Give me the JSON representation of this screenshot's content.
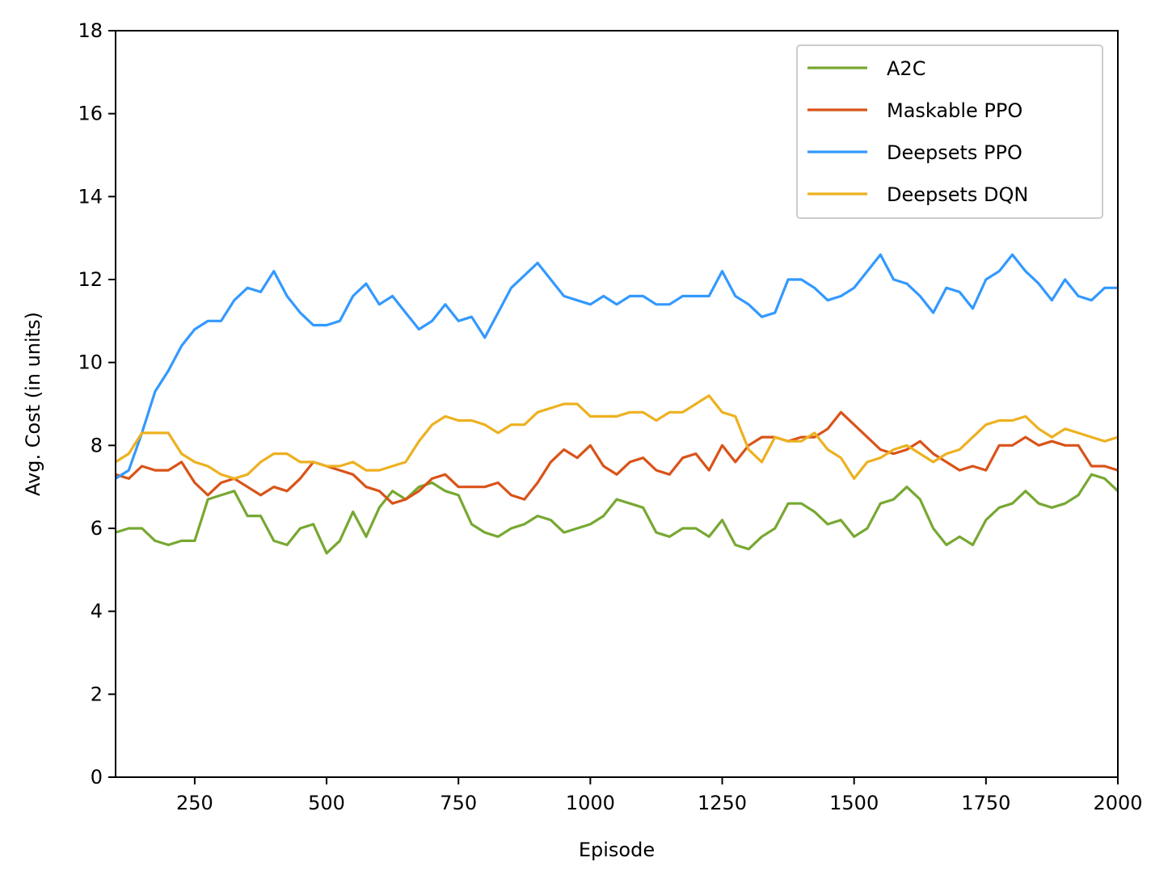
{
  "chart_data": {
    "type": "line",
    "title": "",
    "xlabel": "Episode",
    "ylabel": "Avg. Cost (in units)",
    "xlim": [
      100,
      2000
    ],
    "ylim": [
      0,
      18
    ],
    "xticks": [
      250,
      500,
      750,
      1000,
      1250,
      1500,
      1750,
      2000
    ],
    "yticks": [
      0,
      2,
      4,
      6,
      8,
      10,
      12,
      14,
      16,
      18
    ],
    "grid": false,
    "legend_position": "upper right",
    "x": [
      100,
      125,
      150,
      175,
      200,
      225,
      250,
      275,
      300,
      325,
      350,
      375,
      400,
      425,
      450,
      475,
      500,
      525,
      550,
      575,
      600,
      625,
      650,
      675,
      700,
      725,
      750,
      775,
      800,
      825,
      850,
      875,
      900,
      925,
      950,
      975,
      1000,
      1025,
      1050,
      1075,
      1100,
      1125,
      1150,
      1175,
      1200,
      1225,
      1250,
      1275,
      1300,
      1325,
      1350,
      1375,
      1400,
      1425,
      1450,
      1475,
      1500,
      1525,
      1550,
      1575,
      1600,
      1625,
      1650,
      1675,
      1700,
      1725,
      1750,
      1775,
      1800,
      1825,
      1850,
      1875,
      1900,
      1925,
      1950,
      1975,
      2000
    ],
    "series": [
      {
        "name": "A2C",
        "color": "#77a832",
        "values": [
          5.9,
          6.0,
          6.0,
          5.7,
          5.6,
          5.7,
          5.7,
          6.7,
          6.8,
          6.9,
          6.3,
          6.3,
          5.7,
          5.6,
          6.0,
          6.1,
          5.4,
          5.7,
          6.4,
          5.8,
          6.5,
          6.9,
          6.7,
          7.0,
          7.1,
          6.9,
          6.8,
          6.1,
          5.9,
          5.8,
          6.0,
          6.1,
          6.3,
          6.2,
          5.9,
          6.0,
          6.1,
          6.3,
          6.7,
          6.6,
          6.5,
          5.9,
          5.8,
          6.0,
          6.0,
          5.8,
          6.2,
          5.6,
          5.5,
          5.8,
          6.0,
          6.6,
          6.6,
          6.4,
          6.1,
          6.2,
          5.8,
          6.0,
          6.6,
          6.7,
          7.0,
          6.7,
          6.0,
          5.6,
          5.8,
          5.6,
          6.2,
          6.5,
          6.6,
          6.9,
          6.6,
          6.5,
          6.6,
          6.8,
          7.3,
          7.2,
          6.9
        ]
      },
      {
        "name": "Maskable PPO",
        "color": "#d95319",
        "values": [
          7.3,
          7.2,
          7.5,
          7.4,
          7.4,
          7.6,
          7.1,
          6.8,
          7.1,
          7.2,
          7.0,
          6.8,
          7.0,
          6.9,
          7.2,
          7.6,
          7.5,
          7.4,
          7.3,
          7.0,
          6.9,
          6.6,
          6.7,
          6.9,
          7.2,
          7.3,
          7.0,
          7.0,
          7.0,
          7.1,
          6.8,
          6.7,
          7.1,
          7.6,
          7.9,
          7.7,
          8.0,
          7.5,
          7.3,
          7.6,
          7.7,
          7.4,
          7.3,
          7.7,
          7.8,
          7.4,
          8.0,
          7.6,
          8.0,
          8.2,
          8.2,
          8.1,
          8.2,
          8.2,
          8.4,
          8.8,
          8.5,
          8.2,
          7.9,
          7.8,
          7.9,
          8.1,
          7.8,
          7.6,
          7.4,
          7.5,
          7.4,
          8.0,
          8.0,
          8.2,
          8.0,
          8.1,
          8.0,
          8.0,
          7.5,
          7.5,
          7.4
        ]
      },
      {
        "name": "Deepsets PPO",
        "color": "#3399ff",
        "values": [
          7.2,
          7.4,
          8.3,
          9.3,
          9.8,
          10.4,
          10.8,
          11.0,
          11.0,
          11.5,
          11.8,
          11.7,
          12.2,
          11.6,
          11.2,
          10.9,
          10.9,
          11.0,
          11.6,
          11.9,
          11.4,
          11.6,
          11.2,
          10.8,
          11.0,
          11.4,
          11.0,
          11.1,
          10.6,
          11.2,
          11.8,
          12.1,
          12.4,
          12.0,
          11.6,
          11.5,
          11.4,
          11.6,
          11.4,
          11.6,
          11.6,
          11.4,
          11.4,
          11.6,
          11.6,
          11.6,
          12.2,
          11.6,
          11.4,
          11.1,
          11.2,
          12.0,
          12.0,
          11.8,
          11.5,
          11.6,
          11.8,
          12.2,
          12.6,
          12.0,
          11.9,
          11.6,
          11.2,
          11.8,
          11.7,
          11.3,
          12.0,
          12.2,
          12.6,
          12.2,
          11.9,
          11.5,
          12.0,
          11.6,
          11.5,
          11.8,
          11.8
        ]
      },
      {
        "name": "Deepsets DQN",
        "color": "#edb120",
        "values": [
          7.6,
          7.8,
          8.3,
          8.3,
          8.3,
          7.8,
          7.6,
          7.5,
          7.3,
          7.2,
          7.3,
          7.6,
          7.8,
          7.8,
          7.6,
          7.6,
          7.5,
          7.5,
          7.6,
          7.4,
          7.4,
          7.5,
          7.6,
          8.1,
          8.5,
          8.7,
          8.6,
          8.6,
          8.5,
          8.3,
          8.5,
          8.5,
          8.8,
          8.9,
          9.0,
          9.0,
          8.7,
          8.7,
          8.7,
          8.8,
          8.8,
          8.6,
          8.8,
          8.8,
          9.0,
          9.2,
          8.8,
          8.7,
          7.9,
          7.6,
          8.2,
          8.1,
          8.1,
          8.3,
          7.9,
          7.7,
          7.2,
          7.6,
          7.7,
          7.9,
          8.0,
          7.8,
          7.6,
          7.8,
          7.9,
          8.2,
          8.5,
          8.6,
          8.6,
          8.7,
          8.4,
          8.2,
          8.4,
          8.3,
          8.2,
          8.1,
          8.2
        ]
      }
    ]
  }
}
